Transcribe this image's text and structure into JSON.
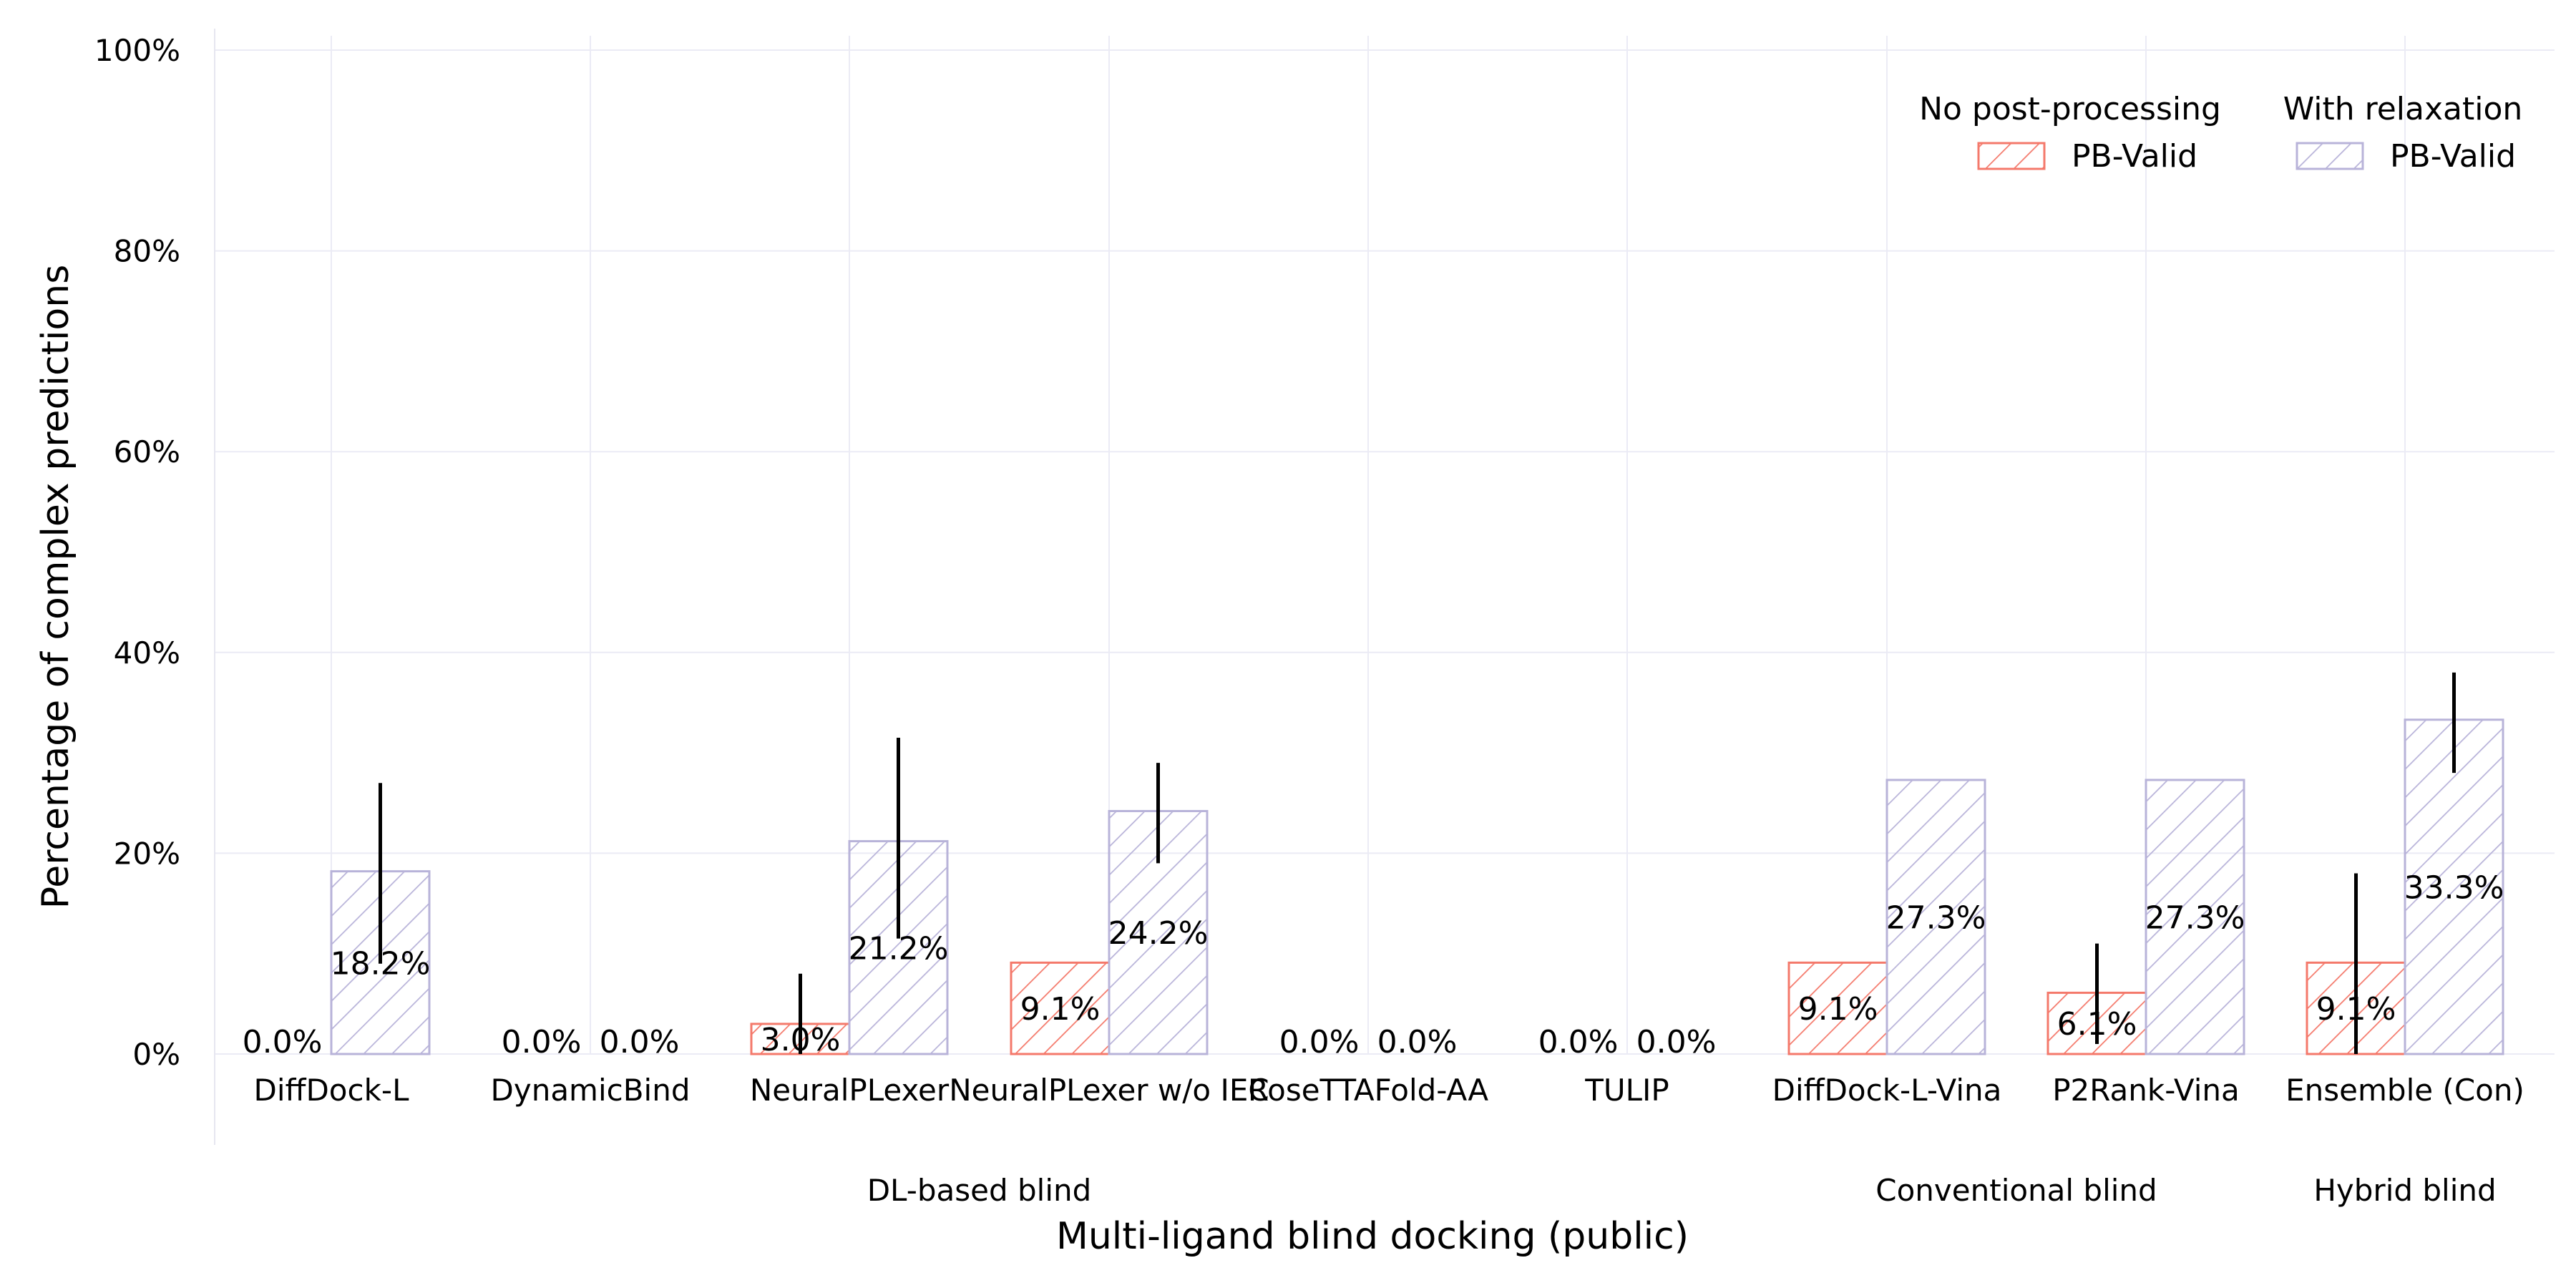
{
  "chart_data": {
    "type": "bar",
    "xlabel": "Multi-ligand blind docking (public)",
    "ylabel": "Percentage of complex predictions",
    "ylim": [
      0,
      100
    ],
    "yticks": [
      "0%",
      "20%",
      "40%",
      "60%",
      "80%",
      "100%"
    ],
    "ytick_values": [
      0,
      20,
      40,
      60,
      80,
      100
    ],
    "grid": true,
    "legend_position": "top-right",
    "categories": [
      "DiffDock-L",
      "DynamicBind",
      "NeuralPLexer",
      "NeuralPLexer w/o IEC",
      "RoseTTAFold-AA",
      "TULIP",
      "DiffDock-L-Vina",
      "P2Rank-Vina",
      "Ensemble (Con)"
    ],
    "groups": [
      {
        "label": "DL-based blind",
        "categories": [
          "DiffDock-L",
          "DynamicBind",
          "NeuralPLexer",
          "NeuralPLexer w/o IEC",
          "RoseTTAFold-AA",
          "TULIP"
        ]
      },
      {
        "label": "Conventional blind",
        "categories": [
          "DiffDock-L-Vina",
          "P2Rank-Vina"
        ]
      },
      {
        "label": "Hybrid blind",
        "categories": [
          "Ensemble (Con)"
        ]
      }
    ],
    "series": [
      {
        "legend_group": "No post-processing",
        "name": "PB-Valid",
        "color": "#f4796b",
        "values": [
          0.0,
          0.0,
          3.0,
          9.1,
          0.0,
          0.0,
          9.1,
          6.1,
          9.1
        ],
        "labels": [
          "0.0%",
          "0.0%",
          "3.0%",
          "9.1%",
          "0.0%",
          "0.0%",
          "9.1%",
          "6.1%",
          "9.1%"
        ],
        "error_low": [
          null,
          null,
          0.0,
          null,
          null,
          null,
          null,
          1.0,
          0.0
        ],
        "error_high": [
          null,
          null,
          8.0,
          null,
          null,
          null,
          null,
          11.0,
          18.0
        ]
      },
      {
        "legend_group": "With relaxation",
        "name": "PB-Valid",
        "color": "#b8b3d9",
        "values": [
          18.2,
          0.0,
          21.2,
          24.2,
          0.0,
          0.0,
          27.3,
          27.3,
          33.3
        ],
        "labels": [
          "18.2%",
          "0.0%",
          "21.2%",
          "24.2%",
          "0.0%",
          "0.0%",
          "27.3%",
          "27.3%",
          "33.3%"
        ],
        "error_low": [
          9.0,
          null,
          11.5,
          19.0,
          null,
          null,
          null,
          null,
          28.0
        ],
        "error_high": [
          27.0,
          null,
          31.5,
          29.0,
          null,
          null,
          null,
          null,
          38.0
        ]
      }
    ]
  }
}
